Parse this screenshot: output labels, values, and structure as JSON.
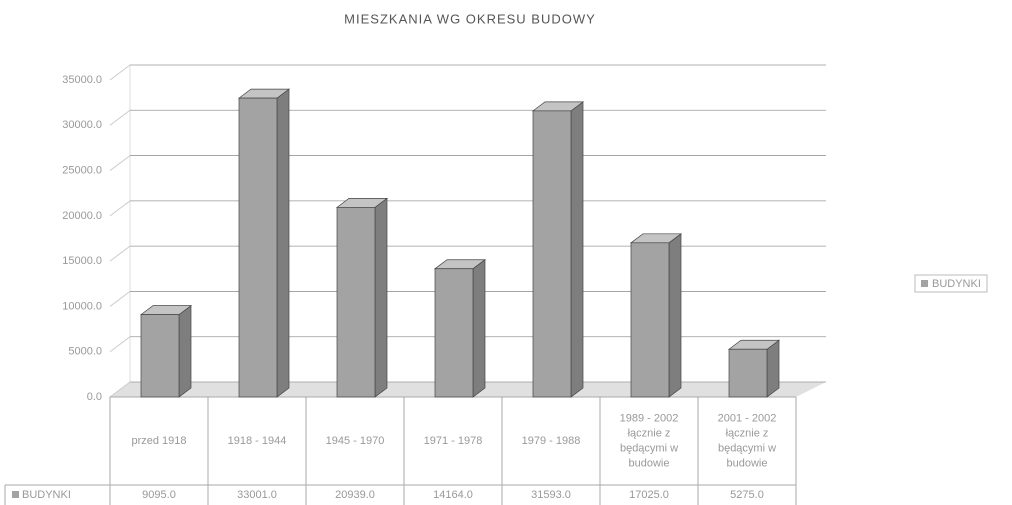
{
  "chart_data": {
    "type": "bar",
    "title": "MIESZKANIA WG OKRESU BUDOWY",
    "categories": [
      "przed 1918",
      "1918 - 1944",
      "1945 - 1970",
      "1971 - 1978",
      "1979 - 1988",
      "1989 - 2002 łącznie z będącymi w budowie",
      "2001 - 2002 łącznie z będącymi w budowie"
    ],
    "series": [
      {
        "name": "BUDYNKI",
        "color": "#a3a3a3",
        "values": [
          9095,
          33001,
          20939,
          14164,
          31593,
          17025,
          5275
        ],
        "value_labels": [
          "9095.0",
          "33001.0",
          "20939.0",
          "14164.0",
          "31593.0",
          "17025.0",
          "5275.0"
        ]
      }
    ],
    "ylim": [
      0,
      35000
    ],
    "yticks": [
      {
        "value": 0,
        "label": "0.0"
      },
      {
        "value": 5000,
        "label": "5000.0"
      },
      {
        "value": 10000,
        "label": "10000.0"
      },
      {
        "value": 15000,
        "label": "15000.0"
      },
      {
        "value": 20000,
        "label": "20000.0"
      },
      {
        "value": 25000,
        "label": "25000.0"
      },
      {
        "value": 30000,
        "label": "30000.0"
      },
      {
        "value": 35000,
        "label": "35000.0"
      }
    ],
    "grid": true,
    "legend": "right"
  }
}
